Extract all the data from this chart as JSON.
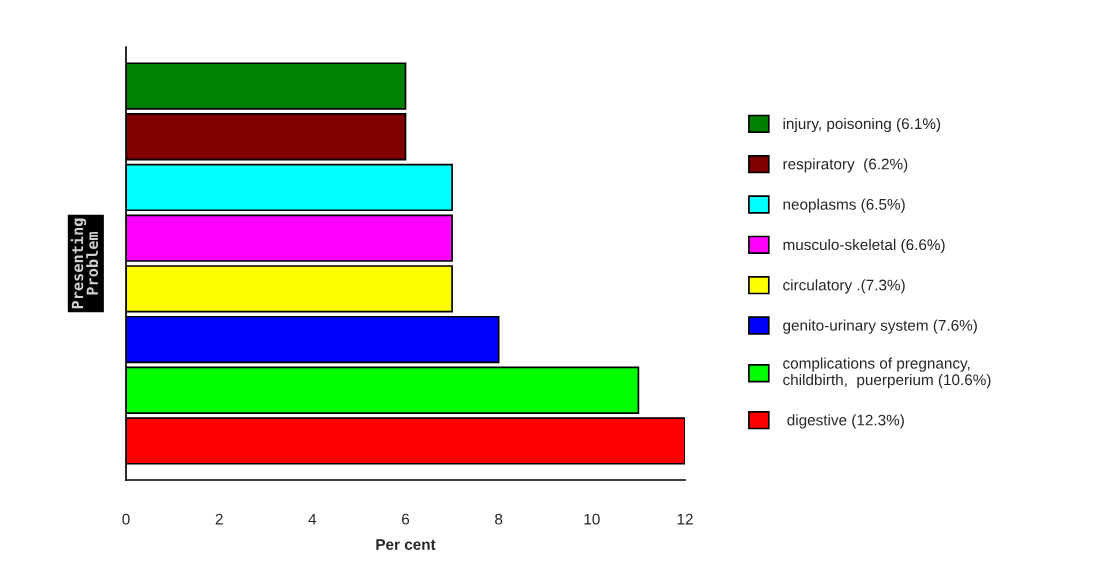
{
  "chart_data": {
    "type": "bar",
    "orientation": "horizontal",
    "stacked": true,
    "categories": [
      null,
      null,
      null,
      null,
      null,
      null,
      null,
      null
    ],
    "series": [
      {
        "name": "injury, poisoning (6.1%)",
        "color": "#008000",
        "values": [
          6,
          null,
          null,
          null,
          null,
          null,
          null,
          null
        ]
      },
      {
        "name": "respiratory  (6.2%)",
        "color": "#800000",
        "values": [
          null,
          6,
          null,
          null,
          null,
          null,
          null,
          null
        ]
      },
      {
        "name": "neoplasms (6.5%)",
        "color": "#00ffff",
        "values": [
          null,
          null,
          7,
          null,
          null,
          null,
          null,
          null
        ]
      },
      {
        "name": "musculo-skeletal (6.6%)",
        "color": "#ff00ff",
        "values": [
          null,
          null,
          null,
          7,
          null,
          null,
          null,
          null
        ]
      },
      {
        "name": "circulatory .(7.3%)",
        "color": "#ffff00",
        "values": [
          null,
          null,
          null,
          null,
          7,
          null,
          null,
          null
        ]
      },
      {
        "name": "genito-urinary system (7.6%)",
        "color": "#0000ff",
        "values": [
          null,
          null,
          null,
          null,
          null,
          8,
          null,
          null
        ]
      },
      {
        "name": "complications of pregnancy,\nchildbirth,  puerperium (10.6%)",
        "color": "#00ff00",
        "values": [
          null,
          null,
          null,
          null,
          null,
          null,
          11,
          null
        ]
      },
      {
        "name": " digestive (12.3%)",
        "color": "#ff0000",
        "values": [
          null,
          null,
          null,
          null,
          null,
          null,
          null,
          12
        ]
      }
    ],
    "xlabel": "Per cent",
    "ylabel": "Presenting\nProblem",
    "xlim": [
      0,
      12
    ],
    "xticks": [
      0,
      2,
      4,
      6,
      8,
      10,
      12
    ],
    "legend": "right",
    "tick_labels": "x"
  }
}
